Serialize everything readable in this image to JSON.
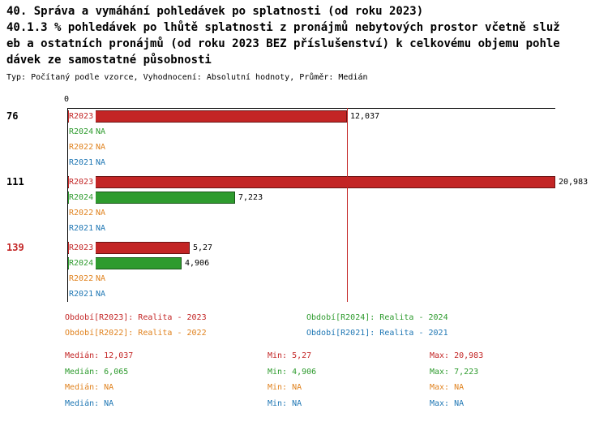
{
  "header": {
    "line1": "40. Správa a vymáhání pohledávek po splatnosti (od roku 2023)",
    "line2": "40.1.3 % pohledávek po lhůtě splatnosti z pronájmů nebytových prostor včetně služ",
    "line3": "eb a ostatních pronájmů (od roku 2023 BEZ příslušenství) k celkovému objemu pohle",
    "line4": "dávek ze samostatné působnosti",
    "meta": "Typ: Počítaný podle vzorce, Vyhodnocení: Absolutní hodnoty, Průměr: Medián"
  },
  "colors": {
    "R2023": "#C32525",
    "R2024": "#2E9B2E",
    "R2022": "#E0821E",
    "R2021": "#1F77B4",
    "axis": "#000000",
    "median_line": "#C32525",
    "group_label_default": "#000000",
    "group_label_highlight": "#C32525",
    "value_label": "#000000"
  },
  "chart_data": {
    "type": "bar",
    "orientation": "horizontal",
    "title": "40.1.3 % pohledávek po lhůtě splatnosti z pronájmů nebytových prostor včetně služeb a ostatních pronájmů (od roku 2023 BEZ příslušenství) k celkovému objemu pohledávek ze samostatné působnosti",
    "x_axis": {
      "ticks": [
        "0"
      ],
      "min": 0,
      "max": 21.0
    },
    "median_line_value": 12.037,
    "series_order": [
      "R2023",
      "R2024",
      "R2022",
      "R2021"
    ],
    "groups": [
      {
        "label": "76",
        "highlight": false,
        "rows": [
          {
            "series": "R2023",
            "value": 12.037,
            "display": "12,037"
          },
          {
            "series": "R2024",
            "value": null,
            "display": "NA"
          },
          {
            "series": "R2022",
            "value": null,
            "display": "NA"
          },
          {
            "series": "R2021",
            "value": null,
            "display": "NA"
          }
        ]
      },
      {
        "label": "111",
        "highlight": false,
        "rows": [
          {
            "series": "R2023",
            "value": 20.983,
            "display": "20,983"
          },
          {
            "series": "R2024",
            "value": 7.223,
            "display": "7,223"
          },
          {
            "series": "R2022",
            "value": null,
            "display": "NA"
          },
          {
            "series": "R2021",
            "value": null,
            "display": "NA"
          }
        ]
      },
      {
        "label": "139",
        "highlight": true,
        "rows": [
          {
            "series": "R2023",
            "value": 5.27,
            "display": "5,27"
          },
          {
            "series": "R2024",
            "value": 4.906,
            "display": "4,906"
          },
          {
            "series": "R2022",
            "value": null,
            "display": "NA"
          },
          {
            "series": "R2021",
            "value": null,
            "display": "NA"
          }
        ]
      }
    ],
    "legend": [
      {
        "series": "R2023",
        "label": "Období[R2023]: Realita - 2023"
      },
      {
        "series": "R2024",
        "label": "Období[R2024]: Realita - 2024"
      },
      {
        "series": "R2022",
        "label": "Období[R2022]: Realita - 2022"
      },
      {
        "series": "R2021",
        "label": "Období[R2021]: Realita - 2021"
      }
    ],
    "stats": [
      {
        "series": "R2023",
        "median": "Medián: 12,037",
        "min": "Min: 5,27",
        "max": "Max: 20,983"
      },
      {
        "series": "R2024",
        "median": "Medián: 6,065",
        "min": "Min: 4,906",
        "max": "Max: 7,223"
      },
      {
        "series": "R2022",
        "median": "Medián: NA",
        "min": "Min: NA",
        "max": "Max: NA"
      },
      {
        "series": "R2021",
        "median": "Medián: NA",
        "min": "Min: NA",
        "max": "Max: NA"
      }
    ]
  }
}
